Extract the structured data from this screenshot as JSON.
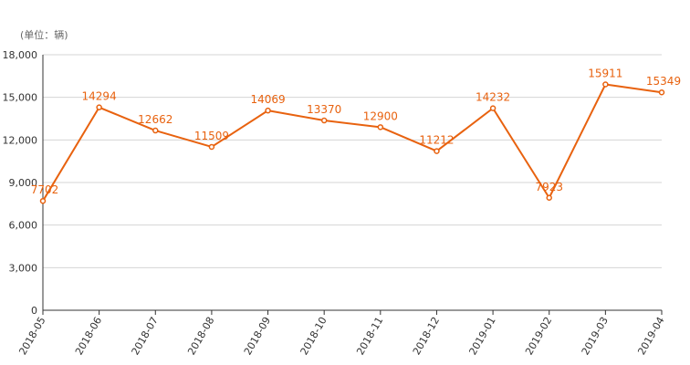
{
  "unit_label": "(单位：辆)",
  "colors": {
    "line": "#e8620f",
    "grid": "#d4d4d4",
    "axis": "#333333"
  },
  "chart_data": {
    "type": "line",
    "categories": [
      "2018-05",
      "2018-06",
      "2018-07",
      "2018-08",
      "2018-09",
      "2018-10",
      "2018-11",
      "2018-12",
      "2019-01",
      "2019-02",
      "2019-03",
      "2019-04"
    ],
    "values": [
      7702,
      14294,
      12662,
      11509,
      14069,
      13370,
      12900,
      11212,
      14232,
      7923,
      15911,
      15349
    ],
    "ylim": [
      0,
      18000
    ],
    "yticks": [
      0,
      3000,
      6000,
      9000,
      12000,
      15000,
      18000
    ],
    "ytick_labels": [
      "0",
      "3,000",
      "6,000",
      "9,000",
      "12,000",
      "15,000",
      "18,000"
    ],
    "title": "",
    "xlabel": "",
    "ylabel": "",
    "grid": true,
    "data_labels": true
  }
}
